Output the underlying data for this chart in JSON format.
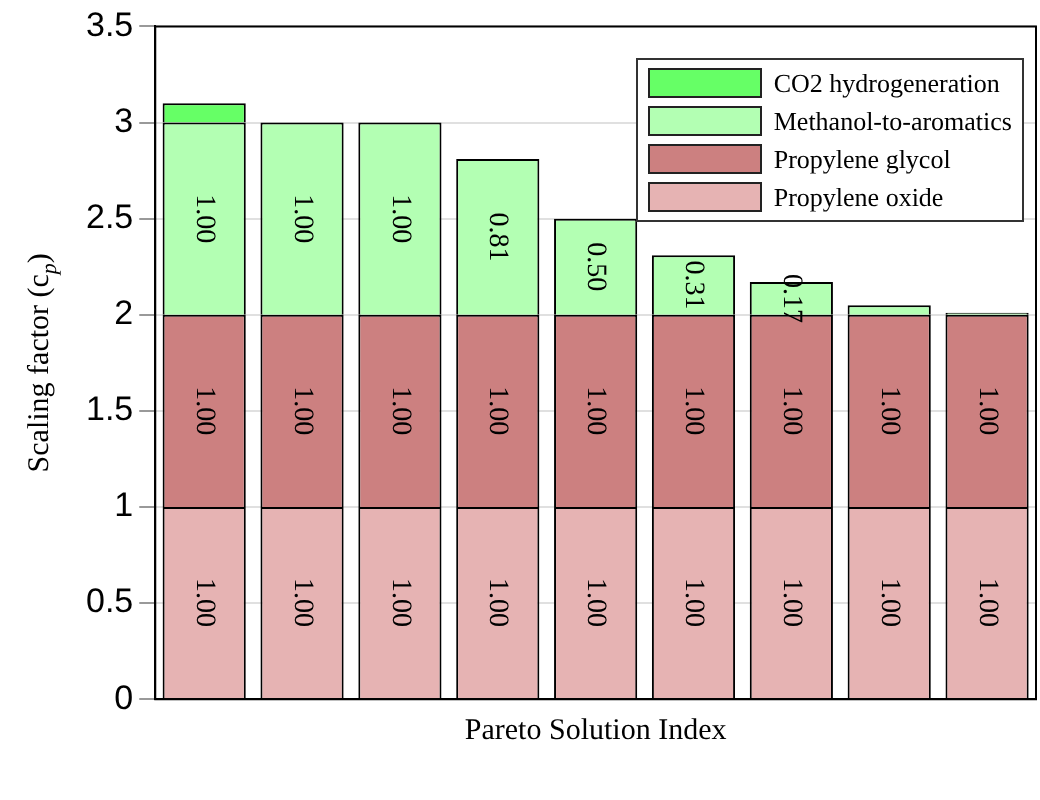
{
  "chart_data": {
    "type": "bar",
    "stacked": true,
    "xlabel": "Pareto Solution Index",
    "ylabel": "Scaling factor (c$_{p}$)",
    "categories": [
      null,
      null,
      null,
      null,
      null,
      null,
      null,
      null,
      null
    ],
    "series": [
      {
        "name": "Propylene oxide",
        "color": "#e6b3b3",
        "values": [
          1,
          1,
          1,
          1,
          1,
          1,
          1,
          1,
          1
        ],
        "value_labels": [
          "1.00",
          "1.00",
          "1.00",
          "1.00",
          "1.00",
          "1.00",
          "1.00",
          "1.00",
          "1.00"
        ]
      },
      {
        "name": "Propylene glycol",
        "color": "#cc8080",
        "values": [
          1,
          1,
          1,
          1,
          1,
          1,
          1,
          1,
          1
        ],
        "value_labels": [
          "1.00",
          "1.00",
          "1.00",
          "1.00",
          "1.00",
          "1.00",
          "1.00",
          "1.00",
          "1.00"
        ]
      },
      {
        "name": "Methanol-to-aromatics",
        "color": "#b3ffb3",
        "values": [
          1,
          1,
          1,
          0.81,
          0.5,
          0.31,
          0.17,
          0.05,
          0.01
        ],
        "value_labels": [
          "1.00",
          "1.00",
          "1.00",
          "0.81",
          "0.50",
          "0.31",
          "0.17",
          null,
          null
        ]
      },
      {
        "name": "CO2 hydrogeneration",
        "color": "#66ff66",
        "values": [
          0.1,
          0,
          0,
          0,
          0,
          0,
          0,
          0,
          0
        ]
      }
    ],
    "ylim": [
      0,
      3.5
    ],
    "yticks": [
      0,
      0.5,
      1,
      1.5,
      2,
      2.5,
      3,
      3.5
    ],
    "grid": "y",
    "legend": "top right"
  }
}
